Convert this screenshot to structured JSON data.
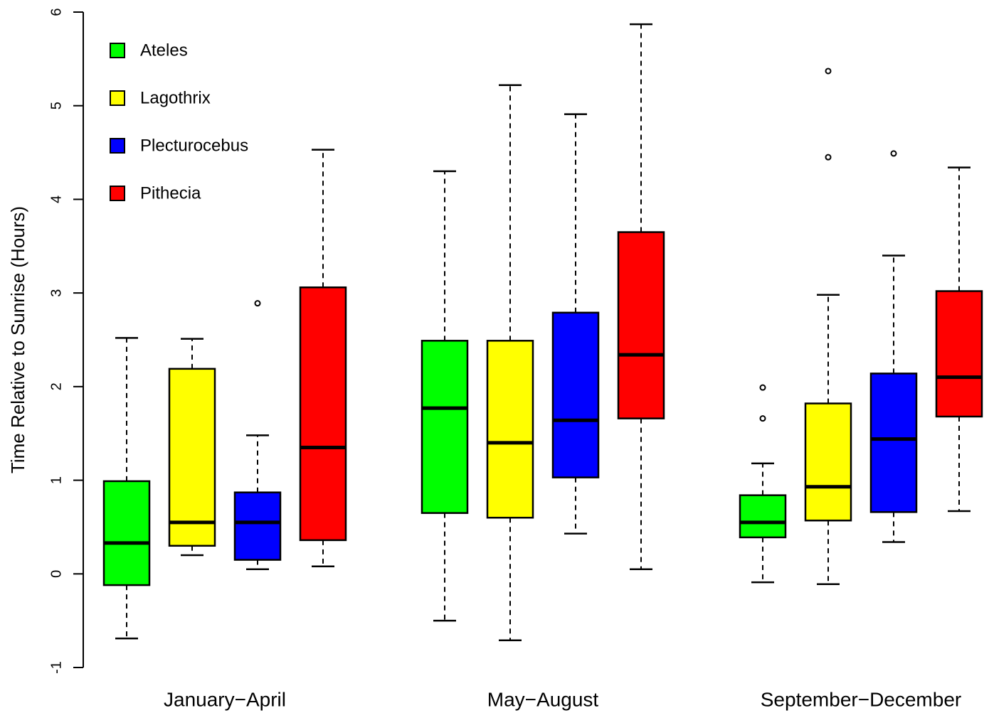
{
  "chart_data": {
    "type": "boxplot",
    "y_label": "Time Relative to Sunrise (Hours)",
    "categories": [
      "January−April",
      "May−August",
      "September−December"
    ],
    "ylim": [
      -1,
      6
    ],
    "yticks": [
      -1,
      0,
      1,
      2,
      3,
      4,
      5,
      6
    ],
    "legend": "top-left",
    "series": [
      {
        "name": "Ateles",
        "color": "#00ff00",
        "min": [
          -0.69,
          -0.5,
          -0.09
        ],
        "q1": [
          -0.12,
          0.65,
          0.39
        ],
        "median": [
          0.33,
          1.77,
          0.55
        ],
        "q3": [
          0.99,
          2.49,
          0.84
        ],
        "max": [
          2.52,
          4.3,
          1.18
        ],
        "outliers": [
          [],
          [],
          [
            1.99,
            1.66
          ]
        ]
      },
      {
        "name": "Lagothrix",
        "color": "#ffff00",
        "min": [
          0.2,
          -0.71,
          -0.11
        ],
        "q1": [
          0.3,
          0.6,
          0.57
        ],
        "median": [
          0.55,
          1.4,
          0.93
        ],
        "q3": [
          2.19,
          2.49,
          1.82
        ],
        "max": [
          2.51,
          5.22,
          2.98
        ],
        "outliers": [
          [],
          [],
          [
            5.37,
            4.45
          ]
        ]
      },
      {
        "name": "Plecturocebus",
        "color": "#0000ff",
        "min": [
          0.05,
          0.43,
          0.34
        ],
        "q1": [
          0.15,
          1.03,
          0.66
        ],
        "median": [
          0.55,
          1.64,
          1.44
        ],
        "q3": [
          0.87,
          2.79,
          2.14
        ],
        "max": [
          1.48,
          4.91,
          3.4
        ],
        "outliers": [
          [
            2.89
          ],
          [],
          [
            4.49
          ]
        ]
      },
      {
        "name": "Pithecia",
        "color": "#ff0000",
        "min": [
          0.08,
          0.05,
          0.67
        ],
        "q1": [
          0.36,
          1.66,
          1.68
        ],
        "median": [
          1.35,
          2.34,
          2.1
        ],
        "q3": [
          3.06,
          3.65,
          3.02
        ],
        "max": [
          4.53,
          5.87,
          4.34
        ],
        "outliers": [
          [],
          [],
          []
        ]
      }
    ]
  }
}
